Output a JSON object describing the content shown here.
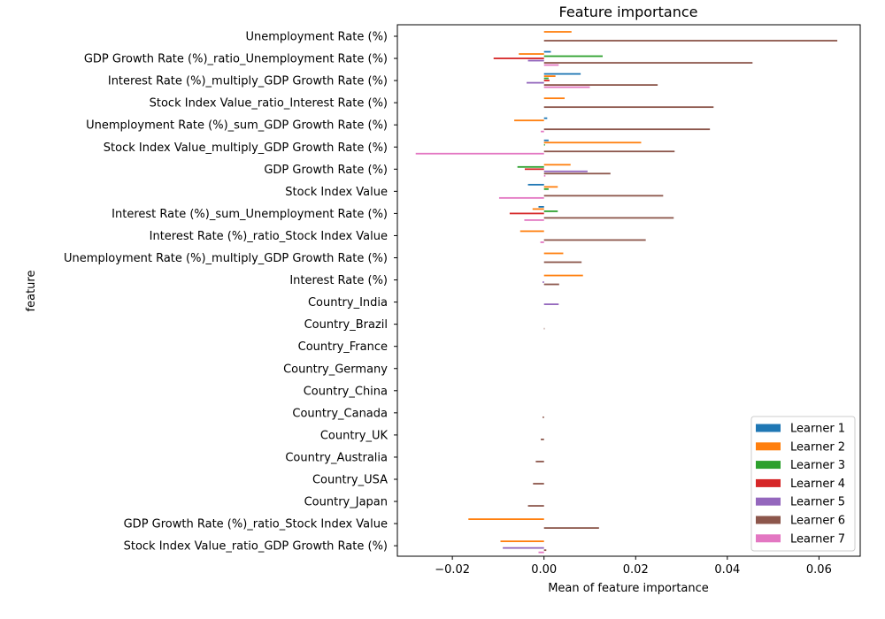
{
  "chart_data": {
    "type": "bar",
    "orientation": "horizontal",
    "title": "Feature importance",
    "xlabel": "Mean of feature importance",
    "ylabel": "feature",
    "xlim": [
      -0.032,
      0.069
    ],
    "xticks": [
      -0.02,
      0.0,
      0.02,
      0.04,
      0.06
    ],
    "xtick_labels": [
      "−0.02",
      "0.00",
      "0.02",
      "0.04",
      "0.06"
    ],
    "grid": false,
    "legend_position": "lower right",
    "categories": [
      "Unemployment Rate (%)",
      "GDP Growth Rate (%)_ratio_Unemployment Rate (%)",
      "Interest Rate (%)_multiply_GDP Growth Rate (%)",
      "Stock Index Value_ratio_Interest Rate (%)",
      "Unemployment Rate (%)_sum_GDP Growth Rate (%)",
      "Stock Index Value_multiply_GDP Growth Rate (%)",
      "GDP Growth Rate (%)",
      "Stock Index Value",
      "Interest Rate (%)_sum_Unemployment Rate (%)",
      "Interest Rate (%)_ratio_Stock Index Value",
      "Unemployment Rate (%)_multiply_GDP Growth Rate (%)",
      "Interest Rate (%)",
      "Country_India",
      "Country_Brazil",
      "Country_France",
      "Country_Germany",
      "Country_China",
      "Country_Canada",
      "Country_UK",
      "Country_Australia",
      "Country_USA",
      "Country_Japan",
      "GDP Growth Rate (%)_ratio_Stock Index Value",
      "Stock Index Value_ratio_GDP Growth Rate (%)"
    ],
    "series": [
      {
        "name": "Learner 1",
        "color": "#1f77b4",
        "values": [
          0,
          0.0015,
          0.008,
          0,
          0.0007,
          0.001,
          0,
          -0.0035,
          -0.0012,
          0,
          0,
          0,
          0,
          0,
          0,
          0,
          0,
          0,
          0,
          0,
          0,
          0,
          0,
          0
        ]
      },
      {
        "name": "Learner 2",
        "color": "#ff7f0e",
        "values": [
          0.006,
          -0.0055,
          0.0025,
          0.0045,
          -0.0065,
          0.0212,
          0.0058,
          0.003,
          -0.0025,
          -0.0052,
          0.0042,
          0.0085,
          0,
          0,
          0,
          0,
          0,
          0,
          0,
          0,
          0,
          0,
          -0.0165,
          -0.0095
        ]
      },
      {
        "name": "Learner 3",
        "color": "#2ca02c",
        "values": [
          0,
          0.0128,
          0.001,
          0,
          0,
          0.0002,
          -0.0058,
          0.001,
          0.003,
          0,
          0,
          0,
          0,
          0,
          0,
          0,
          0,
          0,
          0,
          0,
          0,
          0,
          0,
          0
        ]
      },
      {
        "name": "Learner 4",
        "color": "#d62728",
        "values": [
          0,
          -0.011,
          0.0012,
          0,
          0,
          0,
          -0.0042,
          0,
          -0.0075,
          0,
          0,
          0,
          0,
          0,
          0,
          0,
          0,
          0,
          0,
          0,
          0,
          0,
          0,
          0
        ]
      },
      {
        "name": "Learner 5",
        "color": "#9467bd",
        "values": [
          0,
          -0.0035,
          -0.0038,
          0,
          0,
          0,
          0.0095,
          0,
          0,
          0,
          0,
          -0.0003,
          0.0032,
          0,
          0,
          0,
          0,
          0,
          0,
          0,
          0,
          0,
          0,
          -0.009
        ]
      },
      {
        "name": "Learner 6",
        "color": "#8c564b",
        "values": [
          0.064,
          0.0455,
          0.0248,
          0.037,
          0.0362,
          0.0285,
          0.0145,
          0.026,
          0.0283,
          0.0222,
          0.0082,
          0.0033,
          0,
          0.0001,
          0,
          0,
          0,
          -0.0003,
          -0.0007,
          -0.0018,
          -0.0024,
          -0.0035,
          0.012,
          0.0005
        ]
      },
      {
        "name": "Learner 7",
        "color": "#e377c2",
        "values": [
          0,
          0.0032,
          0.01,
          0,
          -0.0007,
          -0.028,
          0.0003,
          -0.0098,
          -0.0043,
          -0.0008,
          0,
          0,
          0,
          0,
          0,
          0,
          0,
          0,
          0,
          0,
          0,
          0,
          0,
          -0.0012
        ]
      }
    ]
  }
}
